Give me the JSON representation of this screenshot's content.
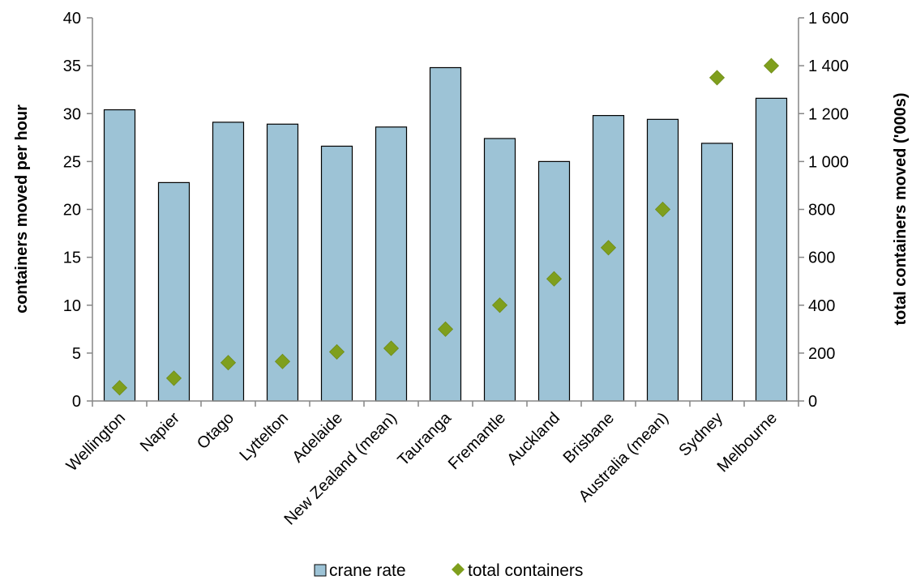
{
  "chart_data": {
    "type": "bar",
    "title": "",
    "categories": [
      "Wellington",
      "Napier",
      "Otago",
      "Lyttelton",
      "Adelaide",
      "New Zealand (mean)",
      "Tauranga",
      "Fremantle",
      "Auckland",
      "Brisbane",
      "Australia (mean)",
      "Sydney",
      "Melbourne"
    ],
    "series": [
      {
        "name": "crane rate",
        "kind": "bar",
        "axis": "left",
        "color": "#9dc3d6",
        "values": [
          30.4,
          22.8,
          29.1,
          28.9,
          26.6,
          28.6,
          34.8,
          27.4,
          25.0,
          29.8,
          29.4,
          26.9,
          31.6
        ]
      },
      {
        "name": "total containers",
        "kind": "scatter",
        "axis": "right",
        "color": "#7f9f1d",
        "values": [
          55,
          95,
          160,
          165,
          205,
          220,
          300,
          400,
          510,
          640,
          800,
          1350,
          1400
        ]
      }
    ],
    "y_left": {
      "label": "containers moved per hour",
      "range": [
        0,
        40
      ],
      "ticks": [
        0,
        5,
        10,
        15,
        20,
        25,
        30,
        35,
        40
      ],
      "tick_labels": [
        "0",
        "5",
        "10",
        "15",
        "20",
        "25",
        "30",
        "35",
        "40"
      ]
    },
    "y_right": {
      "label": "total containers moved ('000s)",
      "range": [
        0,
        1600
      ],
      "ticks": [
        0,
        200,
        400,
        600,
        800,
        1000,
        1200,
        1400,
        1600
      ],
      "tick_labels": [
        "0",
        "200",
        "400",
        "600",
        "800",
        "1 000",
        "1 200",
        "1 400",
        "1 600"
      ]
    },
    "grid": false,
    "legend_position": "bottom"
  }
}
